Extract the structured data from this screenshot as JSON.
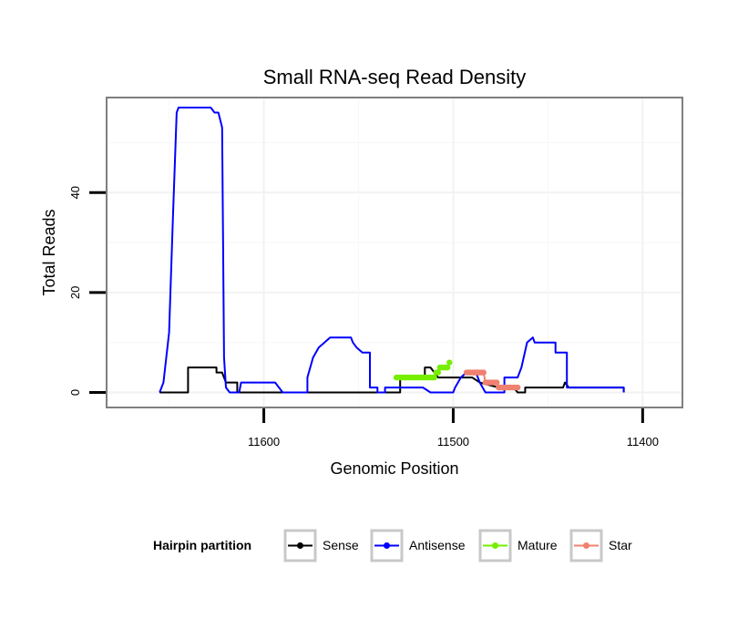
{
  "chart_data": {
    "type": "line",
    "title": "Small RNA-seq Read Density",
    "xlabel": "Genomic Position",
    "ylabel": "Total Reads",
    "xlim": [
      11683,
      11379
    ],
    "ylim": [
      -3,
      59
    ],
    "x_reversed": true,
    "x_ticks": [
      11600,
      11500,
      11400
    ],
    "x_tick_labels": [
      "11600",
      "11500",
      "11400"
    ],
    "y_ticks": [
      0,
      20,
      40
    ],
    "y_tick_labels": [
      "0",
      "20",
      "40"
    ],
    "grid": true,
    "legend": {
      "title": "Hairpin partition",
      "position": "bottom"
    },
    "series": [
      {
        "name": "Sense",
        "color": "#000000",
        "marker": "none",
        "points": [
          [
            11655,
            0
          ],
          [
            11640,
            0
          ],
          [
            11640,
            5
          ],
          [
            11625,
            5
          ],
          [
            11625,
            4
          ],
          [
            11622,
            4
          ],
          [
            11620,
            2
          ],
          [
            11614,
            2
          ],
          [
            11614,
            0
          ],
          [
            11585,
            0
          ],
          [
            11585,
            0
          ],
          [
            11528,
            0
          ],
          [
            11528,
            3
          ],
          [
            11515,
            3
          ],
          [
            11515,
            5
          ],
          [
            11512,
            5
          ],
          [
            11510,
            4
          ],
          [
            11508,
            3
          ],
          [
            11490,
            3
          ],
          [
            11486,
            2
          ],
          [
            11476,
            1
          ],
          [
            11468,
            1
          ],
          [
            11466,
            0
          ],
          [
            11462,
            0
          ],
          [
            11462,
            1
          ],
          [
            11442,
            1
          ],
          [
            11441,
            2
          ],
          [
            11439,
            1
          ],
          [
            11410,
            1
          ],
          [
            11410,
            0
          ]
        ]
      },
      {
        "name": "Antisense",
        "color": "#0000ff",
        "marker": "none",
        "points": [
          [
            11655,
            0
          ],
          [
            11653,
            2
          ],
          [
            11650,
            12
          ],
          [
            11648,
            35
          ],
          [
            11646,
            56
          ],
          [
            11645,
            57
          ],
          [
            11628,
            57
          ],
          [
            11626,
            56
          ],
          [
            11624,
            56
          ],
          [
            11622,
            53
          ],
          [
            11621,
            7
          ],
          [
            11620,
            1
          ],
          [
            11618,
            0
          ],
          [
            11613,
            0
          ],
          [
            11612,
            2
          ],
          [
            11594,
            2
          ],
          [
            11592,
            1
          ],
          [
            11590,
            0
          ],
          [
            11577,
            0
          ],
          [
            11577,
            3
          ],
          [
            11574,
            7
          ],
          [
            11571,
            9
          ],
          [
            11568,
            10
          ],
          [
            11565,
            11
          ],
          [
            11554,
            11
          ],
          [
            11553,
            10
          ],
          [
            11551,
            9
          ],
          [
            11548,
            8
          ],
          [
            11544,
            8
          ],
          [
            11544,
            1
          ],
          [
            11540,
            1
          ],
          [
            11540,
            0
          ],
          [
            11536,
            0
          ],
          [
            11536,
            1
          ],
          [
            11516,
            1
          ],
          [
            11512,
            0
          ],
          [
            11500,
            0
          ],
          [
            11499,
            1
          ],
          [
            11496,
            3
          ],
          [
            11493,
            4
          ],
          [
            11488,
            4
          ],
          [
            11486,
            2
          ],
          [
            11483,
            0
          ],
          [
            11473,
            0
          ],
          [
            11473,
            3
          ],
          [
            11466,
            3
          ],
          [
            11464,
            5
          ],
          [
            11461,
            10
          ],
          [
            11458,
            11
          ],
          [
            11457,
            10
          ],
          [
            11446,
            10
          ],
          [
            11446,
            8
          ],
          [
            11440,
            8
          ],
          [
            11440,
            1
          ],
          [
            11410,
            1
          ],
          [
            11410,
            0
          ]
        ]
      },
      {
        "name": "Mature",
        "color": "#76ee00",
        "marker": "circle",
        "points": [
          [
            11530,
            3
          ],
          [
            11529,
            3
          ],
          [
            11528,
            3
          ],
          [
            11527,
            3
          ],
          [
            11526,
            3
          ],
          [
            11525,
            3
          ],
          [
            11524,
            3
          ],
          [
            11523,
            3
          ],
          [
            11522,
            3
          ],
          [
            11521,
            3
          ],
          [
            11520,
            3
          ],
          [
            11519,
            3
          ],
          [
            11518,
            3
          ],
          [
            11517,
            3
          ],
          [
            11516,
            3
          ],
          [
            11515,
            3
          ],
          [
            11514,
            3
          ],
          [
            11513,
            3
          ],
          [
            11512,
            3
          ],
          [
            11511,
            3
          ],
          [
            11510,
            3
          ],
          [
            11509,
            4
          ],
          [
            11508,
            4
          ],
          [
            11507,
            5
          ],
          [
            11506,
            5
          ],
          [
            11505,
            5
          ],
          [
            11504,
            5
          ],
          [
            11503,
            5
          ],
          [
            11502,
            6
          ]
        ]
      },
      {
        "name": "Star",
        "color": "#f08070",
        "marker": "circle",
        "points": [
          [
            11493,
            4
          ],
          [
            11492,
            4
          ],
          [
            11491,
            4
          ],
          [
            11490,
            4
          ],
          [
            11489,
            4
          ],
          [
            11488,
            4
          ],
          [
            11487,
            4
          ],
          [
            11486,
            4
          ],
          [
            11485,
            4
          ],
          [
            11484,
            4
          ],
          [
            11483,
            2
          ],
          [
            11482,
            2
          ],
          [
            11481,
            2
          ],
          [
            11480,
            2
          ],
          [
            11479,
            2
          ],
          [
            11478,
            2
          ],
          [
            11477,
            2
          ],
          [
            11476,
            1
          ],
          [
            11475,
            1
          ],
          [
            11474,
            1
          ],
          [
            11473,
            1
          ],
          [
            11472,
            1
          ],
          [
            11471,
            1
          ],
          [
            11470,
            1
          ],
          [
            11469,
            1
          ],
          [
            11468,
            1
          ],
          [
            11467,
            1
          ],
          [
            11466,
            1
          ]
        ]
      }
    ]
  }
}
